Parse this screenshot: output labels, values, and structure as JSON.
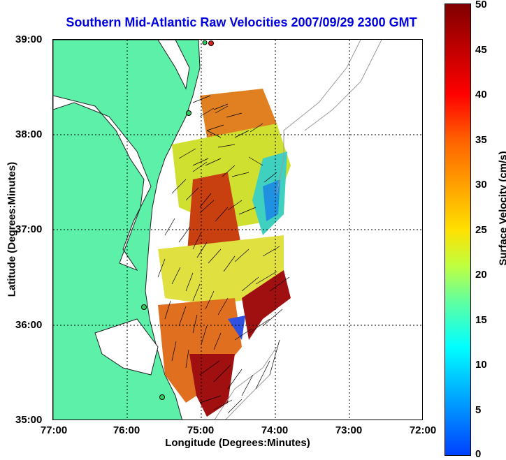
{
  "title": "Southern Mid-Atlantic Raw Velocities 2007/09/29 2300 GMT",
  "xlabel": "Longitude (Degrees:Minutes)",
  "ylabel": "Latitude (Degrees:Minutes)",
  "colorbar_label": "Surface Velocity (cm/s)",
  "x_ticks": [
    "77:00",
    "76:00",
    "75:00",
    "74:00",
    "73:00",
    "72:00"
  ],
  "y_ticks": [
    "39:00",
    "38:00",
    "37:00",
    "36:00",
    "35:00"
  ],
  "colorbar_ticks": [
    "50",
    "45",
    "40",
    "35",
    "30",
    "25",
    "20",
    "15",
    "10",
    "5",
    "0"
  ],
  "colors": {
    "land": "#5cf0a8",
    "title": "#0000dd",
    "coast": "#000000",
    "bathymetry": "#9a9a9a"
  }
}
